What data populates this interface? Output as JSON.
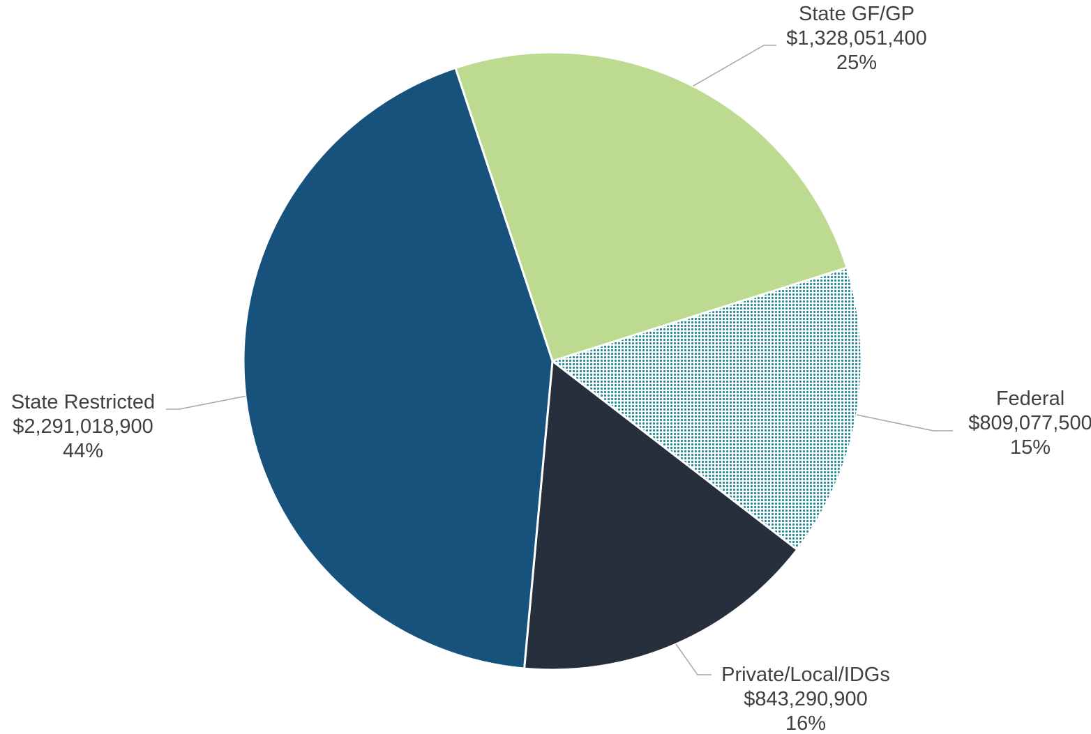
{
  "chart_data": {
    "type": "pie",
    "title": "",
    "slices": [
      {
        "label": "State GF/GP",
        "value": 1328051400,
        "value_label": "$1,328,051,400",
        "percent_label": "25%",
        "color": "#bcdb91",
        "pattern": "solid"
      },
      {
        "label": "Federal",
        "value": 809077500,
        "value_label": "$809,077,500",
        "percent_label": "15%",
        "color": "#2a8a94",
        "pattern": "dotted"
      },
      {
        "label": "Private/Local/IDGs",
        "value": 843290900,
        "value_label": "$843,290,900",
        "percent_label": "16%",
        "color": "#282f3c",
        "pattern": "solid"
      },
      {
        "label": "State Restricted",
        "value": 2291018900,
        "value_label": "$2,291,018,900",
        "percent_label": "44%",
        "color": "#17527c",
        "pattern": "solid"
      }
    ],
    "legend": "none",
    "data_labels": "outside with leader lines"
  }
}
